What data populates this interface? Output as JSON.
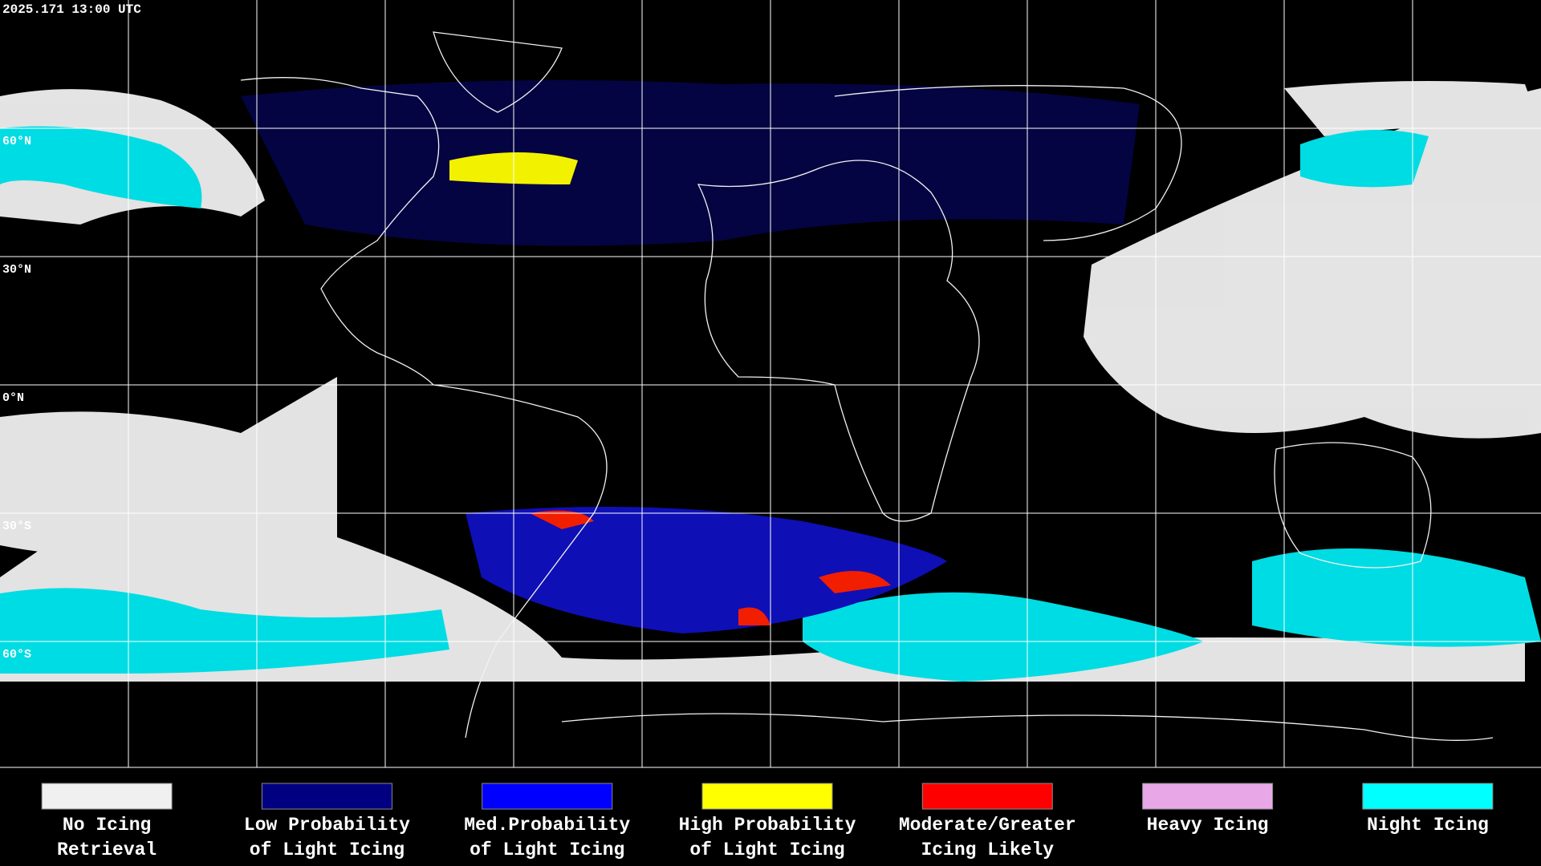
{
  "header": {
    "timestamp": "2025.171 13:00 UTC"
  },
  "latitude_labels": [
    "60°N",
    "30°N",
    "0°N",
    "30°S",
    "60°S"
  ],
  "legend": [
    {
      "lines": [
        "No Icing",
        "Retrieval"
      ],
      "color": "#f0f0f0"
    },
    {
      "lines": [
        "Low Probability",
        "of Light Icing"
      ],
      "color": "#000080"
    },
    {
      "lines": [
        "Med.Probability",
        "of Light Icing"
      ],
      "color": "#0000ff"
    },
    {
      "lines": [
        "High Probability",
        "of Light Icing"
      ],
      "color": "#ffff00"
    },
    {
      "lines": [
        "Moderate/Greater",
        "Icing Likely"
      ],
      "color": "#ff0000"
    },
    {
      "lines": [
        "Heavy Icing"
      ],
      "color": "#e8a8e8"
    },
    {
      "lines": [
        "Night Icing"
      ],
      "color": "#00ffff"
    }
  ]
}
